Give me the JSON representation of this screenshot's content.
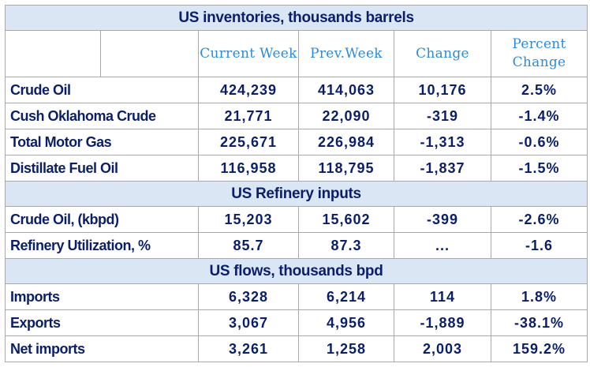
{
  "sections": {
    "inventories": "US inventories, thousands barrels",
    "refinery": "US Refinery inputs",
    "flows": "US flows, thousands bpd"
  },
  "columns": {
    "current": "Current Week",
    "prev": "Prev.Week",
    "change": "Change",
    "percent": "Percent Change"
  },
  "rows": [
    {
      "label": "Crude Oil",
      "current": "424,239",
      "prev": "414,063",
      "change": "10,176",
      "percent": "2.5%"
    },
    {
      "label": "Cush Oklahoma Crude",
      "current": "21,771",
      "prev": "22,090",
      "change": "-319",
      "percent": "-1.4%"
    },
    {
      "label": "Total Motor Gas",
      "current": "225,671",
      "prev": "226,984",
      "change": "-1,313",
      "percent": "-0.6%"
    },
    {
      "label": "Distillate Fuel Oil",
      "current": "116,958",
      "prev": "118,795",
      "change": "-1,837",
      "percent": "-1.5%"
    },
    {
      "label": "Crude Oil, (kbpd)",
      "current": "15,203",
      "prev": "15,602",
      "change": "-399",
      "percent": "-2.6%"
    },
    {
      "label": "Refinery Utilization, %",
      "current": "85.7",
      "prev": "87.3",
      "change": "...",
      "percent": "-1.6"
    },
    {
      "label": "Imports",
      "current": "6,328",
      "prev": "6,214",
      "change": "114",
      "percent": "1.8%"
    },
    {
      "label": "Exports",
      "current": "3,067",
      "prev": "4,956",
      "change": "-1,889",
      "percent": "-38.1%"
    },
    {
      "label": "Net imports",
      "current": "3,261",
      "prev": "1,258",
      "change": "2,003",
      "percent": "159.2%"
    }
  ]
}
